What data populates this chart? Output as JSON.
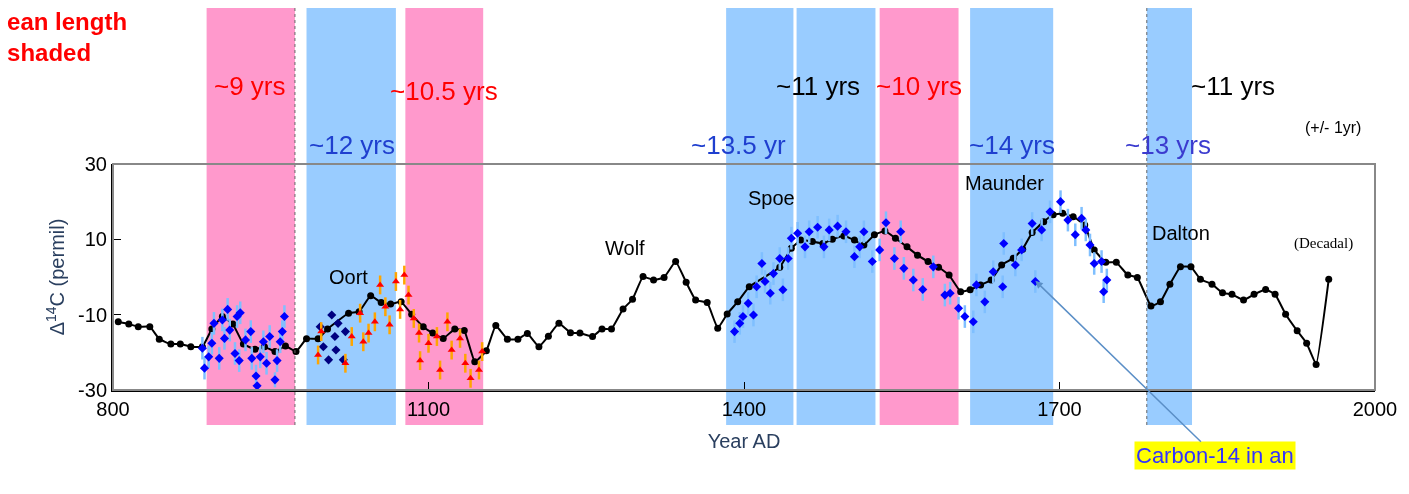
{
  "chart_data": {
    "type": "scatter",
    "title": "ean length\nshaded",
    "xlabel": "Year AD",
    "ylabel": "Δ$^{14}$C (permil)",
    "xlim": [
      800,
      2000
    ],
    "xticks": [
      800,
      1100,
      1400,
      1700,
      2000
    ],
    "ylim": [
      -30,
      30
    ],
    "yticks": [
      30,
      10,
      -10,
      -30
    ],
    "grid": false,
    "bands": [
      {
        "axis": "x",
        "from": 889,
        "to": 973,
        "color": "#ff99cc"
      },
      {
        "axis": "x",
        "from": 984,
        "to": 1069,
        "color": "#99ccff"
      },
      {
        "axis": "x",
        "from": 1078,
        "to": 1152,
        "color": "#ff99cc"
      },
      {
        "axis": "x",
        "from": 1383,
        "to": 1447,
        "color": "#99ccff"
      },
      {
        "axis": "x",
        "from": 1450,
        "to": 1525,
        "color": "#99ccff"
      },
      {
        "axis": "x",
        "from": 1529,
        "to": 1604,
        "color": "#ff99cc"
      },
      {
        "axis": "x",
        "from": 1615,
        "to": 1694,
        "color": "#99ccff"
      },
      {
        "axis": "x",
        "from": 1783,
        "to": 1826,
        "color": "#99ccff"
      }
    ],
    "ref_lines": [
      {
        "axis": "x",
        "value": 973,
        "color": "#666666",
        "line_style": "dotted"
      },
      {
        "axis": "x",
        "value": 1783,
        "color": "#666666",
        "line_style": "dotted"
      }
    ],
    "annotations": [
      "~9 yrs",
      "~12 yrs",
      "~10.5 yrs",
      "~13.5 yr",
      "~11 yrs",
      "~10 yrs",
      "~14 yrs",
      "~13 yrs",
      "~11 yrs",
      "(+/- 1yr)",
      "Oort",
      "Wolf",
      "Spoe",
      "Maunder",
      "Dalton",
      "(Decadal)",
      {
        "text": "Carbon-14 in an",
        "x": 1677,
        "y": -1
      }
    ],
    "series": [
      {
        "marker": "diamond",
        "color": "#0000ff",
        "x": [
          885,
          887,
          891,
          894,
          896,
          901,
          904,
          906,
          909,
          911,
          916,
          918,
          921,
          920,
          926,
          931,
          932,
          936,
          937,
          940,
          943,
          946,
          949,
          954,
          956,
          959,
          961,
          963,
          1391,
          1396,
          1399,
          1404,
          1409,
          1412,
          1417,
          1420,
          1425,
          1428,
          1434,
          1437,
          1442,
          1445,
          1451,
          1458,
          1462,
          1470,
          1476,
          1481,
          1489,
          1497,
          1505,
          1510,
          1514,
          1522,
          1529,
          1535,
          1543,
          1549,
          1552,
          1561,
          1570,
          1580,
          1591,
          1596,
          1604,
          1610,
          1618,
          1621,
          1629,
          1637,
          1646,
          1647,
          1658,
          1664,
          1674,
          1677,
          1683,
          1691,
          1701,
          1708,
          1715,
          1721,
          1725,
          1729,
          1733,
          1740,
          1742,
          1745
        ],
        "values": [
          -18.9,
          -24.2,
          -21.2,
          -17.6,
          -12.3,
          -21.6,
          -11.4,
          -16.3,
          -8.6,
          -14.1,
          -20.3,
          -10.5,
          -9.5,
          -22.2,
          -16.7,
          -14.5,
          -21.6,
          -26.3,
          -28.9,
          -21.2,
          -17.2,
          -22.9,
          -15.8,
          -27.3,
          -22.2,
          -17.2,
          -14.5,
          -10.5,
          -14.5,
          -12.3,
          -10.5,
          -7.0,
          -10.1,
          -2.6,
          3.6,
          -1.2,
          -4.3,
          0.9,
          4.9,
          -3.4,
          4.9,
          10.3,
          11.6,
          8.0,
          12.0,
          13.2,
          8.0,
          12.5,
          13.5,
          12.0,
          5.4,
          8.0,
          12.0,
          4.1,
          7.2,
          14.4,
          4.9,
          12.0,
          2.3,
          -0.8,
          -3.3,
          2.7,
          -4.8,
          -4.3,
          -8.3,
          -10.5,
          -11.9,
          -2.1,
          -6.6,
          1.4,
          -2.6,
          8.9,
          3.2,
          7.2,
          14.2,
          -1.2,
          12.5,
          17.3,
          20.0,
          15.1,
          11.2,
          15.6,
          12.5,
          8.5,
          3.6,
          4.1,
          -3.9,
          -0.8
        ],
        "errors": [
          3,
          3,
          3,
          3,
          3,
          3,
          3,
          3,
          3,
          3,
          3,
          3,
          3,
          3,
          3,
          3,
          3,
          3,
          1,
          3,
          3,
          3,
          3,
          2,
          3,
          3,
          3,
          3,
          3,
          3,
          3,
          3,
          3,
          3,
          3,
          3,
          3,
          3,
          3,
          3,
          3,
          3,
          3,
          3,
          3,
          3,
          3,
          3,
          3,
          3,
          3,
          3,
          3,
          3,
          3,
          3,
          3,
          3,
          3,
          3,
          3,
          3,
          3,
          3,
          3,
          3,
          3,
          3,
          3,
          3,
          3,
          3,
          3,
          3,
          3,
          3,
          3,
          3,
          3,
          3,
          3,
          3,
          3,
          3,
          3,
          3,
          3,
          3
        ]
      },
      {
        "marker": "diamond",
        "color": "#000080",
        "x": [
          997,
          1000,
          1005,
          1008,
          1011,
          1012,
          1014,
          1019,
          1021
        ],
        "values": [
          -13.2,
          -18.5,
          -22,
          -10.1,
          -15.8,
          -19.4,
          -12.3,
          -22,
          -14.5
        ]
      },
      {
        "marker": "triangle",
        "color": "#ff0000",
        "x": [
          995,
          998,
          1021,
          1027,
          1035,
          1038,
          1043,
          1049,
          1054,
          1059,
          1063,
          1069,
          1073,
          1077,
          1081,
          1086,
          1092,
          1091,
          1100,
          1108,
          1111,
          1118,
          1122,
          1130,
          1135,
          1140,
          1148,
          1151
        ],
        "values": [
          -20.7,
          -14.5,
          -22.9,
          -15.8,
          -9.6,
          -17.2,
          -14.9,
          -11.9,
          -2.1,
          -7.9,
          -12.7,
          -1.2,
          -8.6,
          0.5,
          -4.8,
          -11.0,
          -22.2,
          -14.9,
          -17.6,
          -15.8,
          -24.7,
          -11.9,
          -19.4,
          -16.3,
          -22.9,
          -26.9,
          -24.7,
          -19.8
        ],
        "errors": [
          2.5,
          2.5,
          2.5,
          2.5,
          2.5,
          2.5,
          2.5,
          2.5,
          2.5,
          2.5,
          2.5,
          2.5,
          2.5,
          2.5,
          2.5,
          2.5,
          2.5,
          2.5,
          2.5,
          2.5,
          2.5,
          2.5,
          2.5,
          2.5,
          2.5,
          2.5,
          2.5,
          2.5
        ]
      },
      {
        "type": "line",
        "marker": "circle",
        "color": "#000000",
        "x": [
          805,
          815,
          824,
          835,
          844,
          855,
          864,
          874,
          885,
          894,
          904,
          914,
          924,
          935,
          944,
          954,
          964,
          974,
          984,
          995,
          1004,
          1024,
          1034,
          1045,
          1055,
          1064,
          1074,
          1084,
          1095,
          1104,
          1114,
          1125,
          1134,
          1144,
          1155,
          1164,
          1175,
          1185,
          1194,
          1205,
          1214,
          1224,
          1235,
          1244,
          1256,
          1265,
          1274,
          1285,
          1294,
          1304,
          1314,
          1324,
          1335,
          1345,
          1354,
          1365,
          1375,
          1384,
          1394,
          1405,
          1434,
          1445,
          1454,
          1465,
          1475,
          1484,
          1495,
          1505,
          1514,
          1524,
          1534,
          1544,
          1555,
          1565,
          1575,
          1585,
          1595,
          1606,
          1615,
          1625,
          1635,
          1645,
          1656,
          1665,
          1674,
          1685,
          1694,
          1703,
          1713,
          1724,
          1733,
          1744,
          1754,
          1765,
          1774,
          1787,
          1796,
          1805,
          1815,
          1825,
          1834,
          1845,
          1855,
          1864,
          1875,
          1885,
          1896,
          1905,
          1915,
          1926,
          1935,
          1944,
          1956
        ],
        "values": [
          -11.9,
          -12.5,
          -13.2,
          -13.2,
          -16.5,
          -17.8,
          -17.8,
          -18.5,
          -18.5,
          -13.8,
          -10.5,
          -12.5,
          -17.8,
          -19.2,
          -18.5,
          -19.8,
          -18.3,
          -19.8,
          -16.4,
          -16.4,
          -13.8,
          -9.6,
          -9.2,
          -5.0,
          -6.8,
          -7.2,
          -6.6,
          -9.9,
          -13.2,
          -14.9,
          -16.3,
          -13.8,
          -14.2,
          -22.5,
          -19.6,
          -12.9,
          -16.5,
          -16.5,
          -15.0,
          -18.5,
          -15.7,
          -12.3,
          -14.8,
          -14.9,
          -15.8,
          -13.8,
          -13.8,
          -8.5,
          -5.9,
          0.1,
          -0.8,
          -0.1,
          4.1,
          -1.4,
          -6.1,
          -6.8,
          -13.6,
          -9.8,
          -6.6,
          -2.6,
          2.6,
          7.6,
          9.8,
          9.4,
          8.9,
          10.0,
          10.9,
          9.8,
          8.5,
          11.2,
          12.2,
          10.3,
          8.0,
          5.8,
          4.1,
          2.6,
          0.5,
          -3.9,
          -3.4,
          -2.1,
          -0.8,
          3.2,
          5.0,
          7.4,
          11.8,
          14.7,
          16.5,
          16.9,
          16.0,
          13.8,
          7.2,
          3.9,
          3.9,
          0.5,
          -0.1,
          -7.7,
          -6.6,
          -1.9,
          2.7,
          2.7,
          -0.6,
          -1.9,
          -4.2,
          -4.6,
          -6.1,
          -4.6,
          -3.3,
          -4.6,
          -9.9,
          -14.3,
          -17.6,
          -23.2,
          -0.6
        ]
      }
    ]
  }
}
